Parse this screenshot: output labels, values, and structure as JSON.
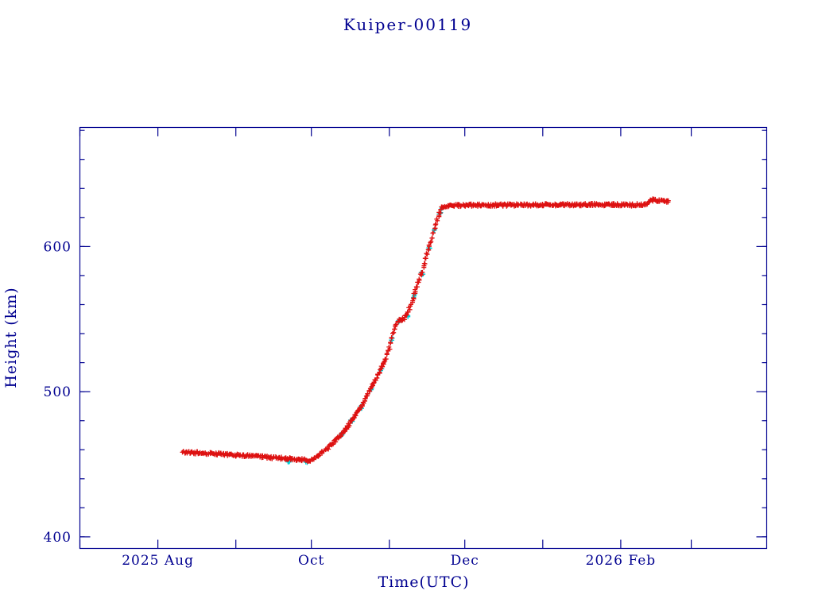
{
  "chart_data": {
    "type": "scatter",
    "title": "Kuiper-00119",
    "xlabel": "Time(UTC)",
    "ylabel": "Height (km)",
    "axis_color": "#000090",
    "background": "#ffffff",
    "x_epoch": "2025-07-01",
    "x_unit": "days since 2025-07-01",
    "xlim": [
      0,
      273
    ],
    "ylim": [
      392,
      682
    ],
    "grid": false,
    "legend": "none",
    "x_month_tick_days": [
      0,
      31,
      62,
      92,
      123,
      153,
      184,
      215,
      243
    ],
    "x_tick_labels": [
      {
        "day": 31,
        "label": "2025 Aug"
      },
      {
        "day": 92,
        "label": "Oct"
      },
      {
        "day": 153,
        "label": "Dec"
      },
      {
        "day": 215,
        "label": "2026 Feb"
      }
    ],
    "y_major_ticks": [
      400,
      500,
      600
    ],
    "y_minor_step": 20,
    "marker": "plus",
    "series": [
      {
        "name": "cyan-series",
        "color": "#00d0d8",
        "points": [
          [
            83,
            451.6
          ],
          [
            90,
            451.2
          ],
          [
            104,
            470.5
          ],
          [
            108,
            480.5
          ],
          [
            112,
            489.5
          ],
          [
            116,
            501.5
          ],
          [
            120,
            515.5
          ],
          [
            124,
            536.0
          ],
          [
            127,
            548.5
          ],
          [
            130,
            552.5
          ],
          [
            133,
            566.0
          ],
          [
            136,
            581.5
          ],
          [
            139,
            598.0
          ],
          [
            141,
            611.0
          ],
          [
            143,
            622.5
          ],
          [
            144,
            627.0
          ]
        ]
      },
      {
        "name": "red-series",
        "color": "#dd1111",
        "points": [
          [
            41,
            458.3
          ],
          [
            45,
            458.0
          ],
          [
            50,
            457.6
          ],
          [
            55,
            457.1
          ],
          [
            60,
            456.6
          ],
          [
            65,
            456.0
          ],
          [
            70,
            455.4
          ],
          [
            75,
            454.8
          ],
          [
            80,
            454.2
          ],
          [
            84,
            453.7
          ],
          [
            87,
            453.3
          ],
          [
            89,
            453.0
          ],
          [
            91,
            452.6
          ],
          [
            93,
            453.5
          ],
          [
            95,
            456.0
          ],
          [
            97,
            459.0
          ],
          [
            99,
            462.0
          ],
          [
            101,
            465.5
          ],
          [
            103,
            469.0
          ],
          [
            105,
            473.0
          ],
          [
            107,
            477.5
          ],
          [
            109,
            482.5
          ],
          [
            111,
            488.0
          ],
          [
            113,
            494.0
          ],
          [
            115,
            500.0
          ],
          [
            117,
            506.5
          ],
          [
            119,
            513.5
          ],
          [
            121,
            521.0
          ],
          [
            123,
            530.0
          ],
          [
            124,
            537.0
          ],
          [
            125,
            543.0
          ],
          [
            126,
            547.0
          ],
          [
            127,
            549.0
          ],
          [
            128,
            549.5
          ],
          [
            129,
            550.5
          ],
          [
            130,
            553.0
          ],
          [
            131,
            557.0
          ],
          [
            132,
            562.0
          ],
          [
            134,
            572.0
          ],
          [
            136,
            583.0
          ],
          [
            138,
            594.5
          ],
          [
            140,
            606.0
          ],
          [
            141,
            612.0
          ],
          [
            142,
            618.0
          ],
          [
            143,
            623.5
          ],
          [
            144,
            626.5
          ],
          [
            145,
            628.0
          ],
          [
            150,
            628.3
          ],
          [
            155,
            628.5
          ],
          [
            160,
            628.4
          ],
          [
            165,
            628.6
          ],
          [
            170,
            628.5
          ],
          [
            175,
            628.7
          ],
          [
            180,
            628.6
          ],
          [
            185,
            628.8
          ],
          [
            190,
            628.7
          ],
          [
            195,
            628.8
          ],
          [
            200,
            628.8
          ],
          [
            205,
            628.9
          ],
          [
            210,
            628.8
          ],
          [
            215,
            628.7
          ],
          [
            220,
            628.6
          ],
          [
            225,
            629.0
          ],
          [
            226,
            630.3
          ],
          [
            227,
            631.5
          ],
          [
            228,
            632.0
          ],
          [
            230,
            631.5
          ],
          [
            232,
            631.2
          ],
          [
            234,
            631.3
          ]
        ]
      }
    ]
  }
}
